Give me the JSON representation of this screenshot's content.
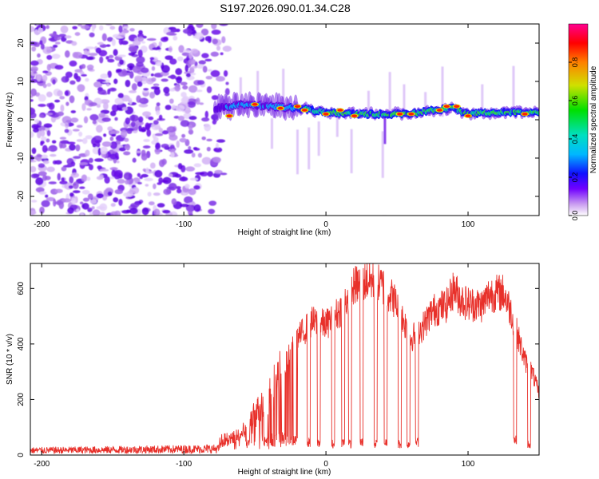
{
  "title": "S197.2026.090.01.34.C28",
  "chart_data": [
    {
      "type": "heatmap",
      "name": "spectrogram",
      "xlabel": "Height of straight line (km)",
      "ylabel": "Frequency (Hz)",
      "xlim": [
        -208,
        150
      ],
      "ylim": [
        -25,
        25
      ],
      "xticks": [
        -200,
        -100,
        0,
        100
      ],
      "yticks": [
        -20,
        -10,
        0,
        10,
        20
      ],
      "xtick_labels": [
        "-200",
        "-100",
        "0",
        "100"
      ],
      "ytick_labels": [
        "-20",
        "-10",
        "0",
        "10",
        "20"
      ],
      "noise_region_x": [
        -208,
        -75
      ],
      "signal_ridge": [
        {
          "x": -75,
          "f": 3.0
        },
        {
          "x": -60,
          "f": 4.0
        },
        {
          "x": -40,
          "f": 3.5
        },
        {
          "x": -20,
          "f": 3.0
        },
        {
          "x": 0,
          "f": 2.0
        },
        {
          "x": 20,
          "f": 1.5
        },
        {
          "x": 40,
          "f": 1.5
        },
        {
          "x": 60,
          "f": 1.5
        },
        {
          "x": 75,
          "f": 2.5
        },
        {
          "x": 90,
          "f": 3.0
        },
        {
          "x": 100,
          "f": 1.5
        },
        {
          "x": 120,
          "f": 2.0
        },
        {
          "x": 150,
          "f": 1.8
        }
      ],
      "hot_spots": [
        {
          "x": -68,
          "f": 1.0
        },
        {
          "x": -50,
          "f": 4.0
        },
        {
          "x": -32,
          "f": 3.0
        },
        {
          "x": -20,
          "f": 3.5
        },
        {
          "x": -15,
          "f": 2.5
        },
        {
          "x": 0,
          "f": 1.5
        },
        {
          "x": 10,
          "f": 2.5
        },
        {
          "x": 20,
          "f": 1.0
        },
        {
          "x": 52,
          "f": 1.5
        },
        {
          "x": 60,
          "f": 1.5
        },
        {
          "x": 80,
          "f": 2.5
        },
        {
          "x": 85,
          "f": 3.5
        },
        {
          "x": 92,
          "f": 3.5
        },
        {
          "x": 100,
          "f": 1.0
        },
        {
          "x": 140,
          "f": 1.5
        }
      ],
      "colorbar": {
        "label": "Normalized spectral amplitude",
        "range": [
          0,
          1
        ],
        "ticks": [
          0.0,
          0.2,
          0.4,
          0.6,
          0.8
        ],
        "tick_labels": [
          "0.0",
          "0.2",
          "0.4",
          "0.6",
          "0.8"
        ]
      }
    },
    {
      "type": "line",
      "name": "snr",
      "xlabel": "Height of straight line (km)",
      "ylabel": "SNR (10 * v/v)",
      "xlim": [
        -208,
        150
      ],
      "ylim": [
        0,
        690
      ],
      "xticks": [
        -200,
        -100,
        0,
        100
      ],
      "yticks": [
        0,
        200,
        400,
        600
      ],
      "xtick_labels": [
        "-200",
        "-100",
        "0",
        "100"
      ],
      "ytick_labels": [
        "0",
        "200",
        "400",
        "600"
      ],
      "color": "#e8302a",
      "envelope": [
        {
          "x": -208,
          "y": 22
        },
        {
          "x": -150,
          "y": 25
        },
        {
          "x": -100,
          "y": 28
        },
        {
          "x": -75,
          "y": 30
        },
        {
          "x": -60,
          "y": 80
        },
        {
          "x": -45,
          "y": 180
        },
        {
          "x": -35,
          "y": 260
        },
        {
          "x": -20,
          "y": 420
        },
        {
          "x": -10,
          "y": 480
        },
        {
          "x": 0,
          "y": 470
        },
        {
          "x": 10,
          "y": 520
        },
        {
          "x": 20,
          "y": 610
        },
        {
          "x": 30,
          "y": 630
        },
        {
          "x": 40,
          "y": 610
        },
        {
          "x": 48,
          "y": 560
        },
        {
          "x": 55,
          "y": 480
        },
        {
          "x": 60,
          "y": 420
        },
        {
          "x": 68,
          "y": 460
        },
        {
          "x": 75,
          "y": 520
        },
        {
          "x": 85,
          "y": 540
        },
        {
          "x": 90,
          "y": 600
        },
        {
          "x": 95,
          "y": 560
        },
        {
          "x": 100,
          "y": 545
        },
        {
          "x": 110,
          "y": 540
        },
        {
          "x": 115,
          "y": 580
        },
        {
          "x": 125,
          "y": 585
        },
        {
          "x": 130,
          "y": 520
        },
        {
          "x": 135,
          "y": 430
        },
        {
          "x": 140,
          "y": 340
        },
        {
          "x": 145,
          "y": 300
        },
        {
          "x": 150,
          "y": 220
        }
      ],
      "dropouts": [
        {
          "x": -55,
          "y": 40
        },
        {
          "x": -42,
          "y": 50
        },
        {
          "x": -30,
          "y": 60
        },
        {
          "x": -22,
          "y": 50
        },
        {
          "x": -12,
          "y": 45
        },
        {
          "x": -5,
          "y": 45
        },
        {
          "x": 5,
          "y": 40
        },
        {
          "x": 12,
          "y": 45
        },
        {
          "x": 17,
          "y": 40
        },
        {
          "x": 25,
          "y": 45
        },
        {
          "x": 35,
          "y": 40
        },
        {
          "x": 42,
          "y": 45
        },
        {
          "x": 52,
          "y": 40
        },
        {
          "x": 58,
          "y": 40
        },
        {
          "x": 64,
          "y": 45
        },
        {
          "x": 133,
          "y": 55
        },
        {
          "x": 143,
          "y": 40
        }
      ]
    }
  ]
}
